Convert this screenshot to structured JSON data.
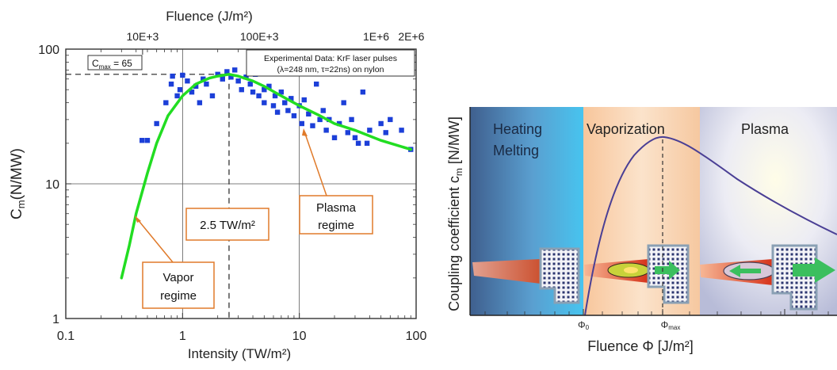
{
  "chart_data": [
    {
      "type": "scatter",
      "title": "",
      "xlabel": "Intensity (TW/m²)",
      "x2label": "Fluence (J/m²)",
      "ylabel": "Cm(N/MW)",
      "ylabel_main": "C",
      "ylabel_sub": "m",
      "ylabel_tail": "(N/MW)",
      "x_scale": "log",
      "y_scale": "log",
      "xlim": [
        0.3,
        100
      ],
      "ylim": [
        1,
        100
      ],
      "x_ticks": [
        {
          "value": 0.1,
          "label": "0.1"
        },
        {
          "value": 1,
          "label": "1"
        },
        {
          "value": 10,
          "label": "10"
        },
        {
          "value": 100,
          "label": "100"
        }
      ],
      "y_ticks": [
        {
          "value": 1,
          "label": "1"
        },
        {
          "value": 10,
          "label": "10"
        },
        {
          "value": 100,
          "label": "100"
        }
      ],
      "x2_ticks": [
        {
          "label": "10E+3",
          "fluence": 10000
        },
        {
          "label": "100E+3",
          "fluence": 100000
        },
        {
          "label": "1E+6",
          "fluence": 1000000
        },
        {
          "label": "2E+6",
          "fluence": 2000000
        }
      ],
      "grid": true,
      "legend_box": {
        "line1": "Experimental Data: KrF laser pulses",
        "line2": "(λ=248 nm, τ=22ns) on nylon"
      },
      "cmax_label": "Cmax = 65",
      "cmax_label_main": "C",
      "cmax_label_sub": "max",
      "cmax_label_tail": " = 65",
      "cmax_value": 65,
      "peak_intensity": 2.5,
      "annotations": [
        {
          "id": "vapor",
          "lines": [
            "Vapor",
            "regime"
          ],
          "points_to": [
            0.4,
            6
          ]
        },
        {
          "id": "intensity",
          "lines": [
            "2.5 TW/m²"
          ]
        },
        {
          "id": "plasma",
          "lines": [
            "Plasma",
            "regime"
          ],
          "points_to": [
            10.5,
            28
          ]
        }
      ],
      "series": [
        {
          "kind": "scatter",
          "color": "#1c3fd8",
          "points": [
            [
              0.45,
              21
            ],
            [
              0.5,
              21
            ],
            [
              0.6,
              28
            ],
            [
              0.72,
              40
            ],
            [
              0.8,
              55
            ],
            [
              0.82,
              63
            ],
            [
              0.9,
              45
            ],
            [
              0.95,
              50
            ],
            [
              1.0,
              64
            ],
            [
              1.1,
              58
            ],
            [
              1.2,
              48
            ],
            [
              1.3,
              53
            ],
            [
              1.4,
              40
            ],
            [
              1.5,
              60
            ],
            [
              1.6,
              55
            ],
            [
              1.8,
              45
            ],
            [
              2.0,
              65
            ],
            [
              2.2,
              60
            ],
            [
              2.4,
              68
            ],
            [
              2.6,
              62
            ],
            [
              2.8,
              70
            ],
            [
              3.0,
              58
            ],
            [
              3.2,
              50
            ],
            [
              3.5,
              62
            ],
            [
              3.8,
              55
            ],
            [
              4.0,
              48
            ],
            [
              4.2,
              65
            ],
            [
              4.5,
              45
            ],
            [
              5.0,
              50
            ],
            [
              5.0,
              40
            ],
            [
              5.5,
              53
            ],
            [
              6.0,
              38
            ],
            [
              6.2,
              45
            ],
            [
              6.5,
              34
            ],
            [
              7.0,
              48
            ],
            [
              7.5,
              40
            ],
            [
              8.0,
              35
            ],
            [
              8.5,
              43
            ],
            [
              9.0,
              32
            ],
            [
              10.0,
              38
            ],
            [
              10.5,
              28
            ],
            [
              11.0,
              42
            ],
            [
              12.0,
              33
            ],
            [
              13.0,
              27
            ],
            [
              14.0,
              55
            ],
            [
              15.0,
              30
            ],
            [
              16.0,
              35
            ],
            [
              17.0,
              25
            ],
            [
              18.0,
              30
            ],
            [
              20.0,
              22
            ],
            [
              22.0,
              28
            ],
            [
              24.0,
              40
            ],
            [
              26.0,
              24
            ],
            [
              28.0,
              30
            ],
            [
              30.0,
              22
            ],
            [
              32.0,
              20
            ],
            [
              35.0,
              48
            ],
            [
              38.0,
              20
            ],
            [
              40.0,
              25
            ],
            [
              50.0,
              28
            ],
            [
              55.0,
              24
            ],
            [
              60.0,
              30
            ],
            [
              75.0,
              25
            ],
            [
              90.0,
              18
            ]
          ]
        },
        {
          "kind": "line",
          "color": "#22dd22",
          "points": [
            [
              0.3,
              2
            ],
            [
              0.35,
              3.5
            ],
            [
              0.4,
              6
            ],
            [
              0.5,
              12
            ],
            [
              0.6,
              20
            ],
            [
              0.75,
              32
            ],
            [
              1.0,
              45
            ],
            [
              1.3,
              55
            ],
            [
              1.7,
              61
            ],
            [
              2.0,
              63
            ],
            [
              2.5,
              65
            ],
            [
              3.0,
              63
            ],
            [
              4.0,
              58
            ],
            [
              5.0,
              53
            ],
            [
              7.0,
              45
            ],
            [
              10.0,
              38
            ],
            [
              15.0,
              32
            ],
            [
              20.0,
              28
            ],
            [
              30.0,
              25
            ],
            [
              50.0,
              21
            ],
            [
              90.0,
              18
            ]
          ]
        }
      ]
    },
    {
      "type": "line",
      "title": "",
      "ylabel": "Coupling coefficient cm [N/MW]",
      "ylabel_main": "Coupling coefficient c",
      "ylabel_sub": "m",
      "ylabel_tail": " [N/MW]",
      "xlabel": "Fluence Φ [J/m²]",
      "x_tick_labels": [
        "Φ₀",
        "Φmax"
      ],
      "phi0_main": "Φ",
      "phi0_sub": "0",
      "phimax_main": "Φ",
      "phimax_sub": "max",
      "regions": [
        {
          "lines": [
            "Heating",
            "Melting"
          ],
          "color": "#4ab8e8"
        },
        {
          "lines": [
            "Vaporization"
          ],
          "color": "#f9c9a0"
        },
        {
          "lines": [
            "Plasma"
          ],
          "color": "#e4e2f2"
        }
      ],
      "curve_color": "#4a3f95"
    }
  ]
}
